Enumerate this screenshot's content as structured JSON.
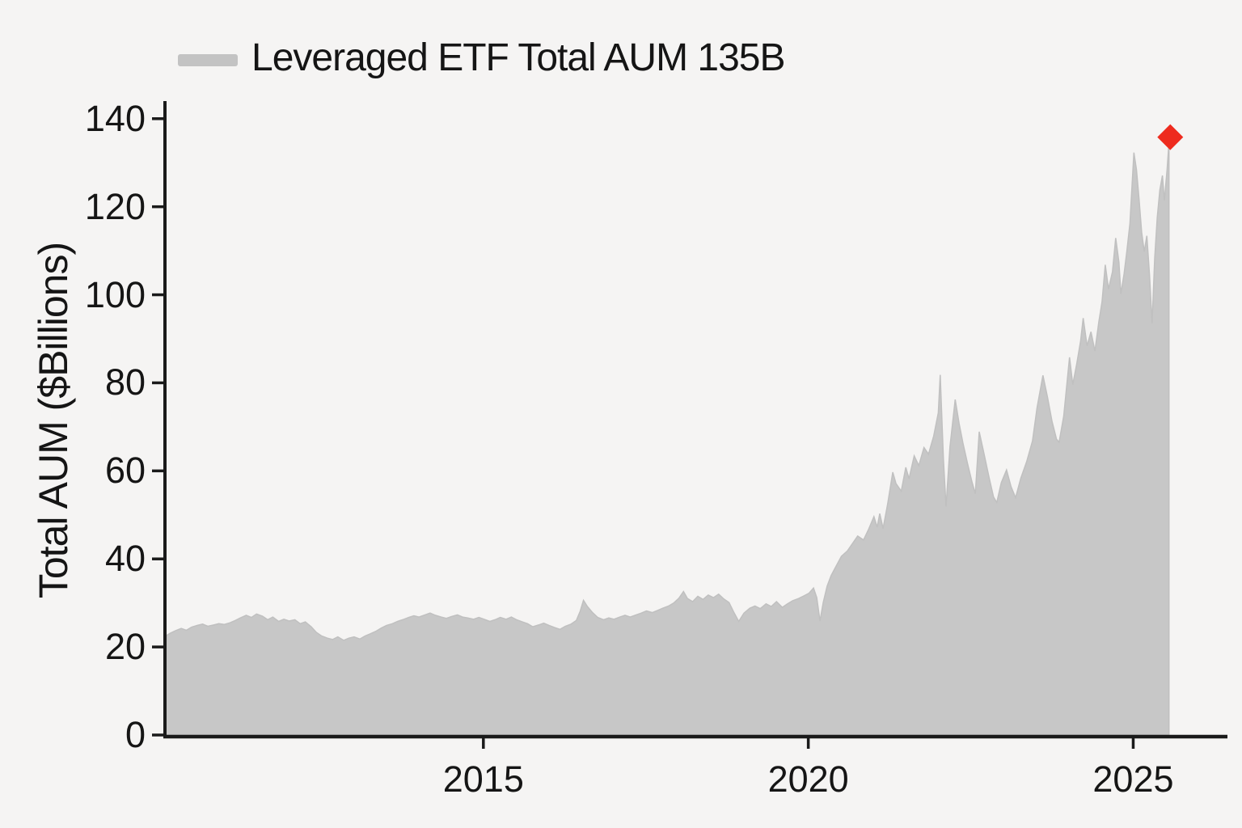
{
  "legend": {
    "label": "Leveraged ETF Total AUM 135B"
  },
  "colors": {
    "background": "#f5f4f3",
    "area_fill": "#c7c7c7",
    "area_edge": "#c0c0c0",
    "axis": "#1a1a1a",
    "text": "#151515",
    "legend_swatch": "#c3c3c3",
    "marker_red": "#ee2b1e"
  },
  "chart_data": {
    "type": "area",
    "series_name": "Leveraged ETF Total AUM",
    "latest_value_label": "135B",
    "ylabel": "Total AUM ($Billions)",
    "xticks": [
      2015,
      2020,
      2025
    ],
    "yticks": [
      0,
      20,
      40,
      60,
      80,
      100,
      120,
      140
    ],
    "xlim": [
      2010.1,
      2026.45
    ],
    "ylim": [
      0,
      144
    ],
    "grid": false,
    "legend_position": "upper-left",
    "marker": {
      "x": 2025.57,
      "y": 135.8,
      "shape": "diamond",
      "color": "#ee2b1e"
    },
    "points": [
      [
        2010.1,
        22.4
      ],
      [
        2010.18,
        23.1
      ],
      [
        2010.26,
        23.7
      ],
      [
        2010.35,
        24.2
      ],
      [
        2010.43,
        23.8
      ],
      [
        2010.51,
        24.5
      ],
      [
        2010.6,
        24.9
      ],
      [
        2010.68,
        25.2
      ],
      [
        2010.76,
        24.7
      ],
      [
        2010.85,
        25.0
      ],
      [
        2010.93,
        25.3
      ],
      [
        2011.01,
        25.1
      ],
      [
        2011.1,
        25.5
      ],
      [
        2011.18,
        26.0
      ],
      [
        2011.26,
        26.6
      ],
      [
        2011.35,
        27.2
      ],
      [
        2011.43,
        26.7
      ],
      [
        2011.51,
        27.5
      ],
      [
        2011.6,
        27.0
      ],
      [
        2011.68,
        26.2
      ],
      [
        2011.76,
        26.8
      ],
      [
        2011.85,
        25.8
      ],
      [
        2011.93,
        26.3
      ],
      [
        2012.01,
        25.9
      ],
      [
        2012.1,
        26.2
      ],
      [
        2012.18,
        25.3
      ],
      [
        2012.26,
        25.7
      ],
      [
        2012.35,
        24.6
      ],
      [
        2012.43,
        23.3
      ],
      [
        2012.51,
        22.5
      ],
      [
        2012.6,
        22.0
      ],
      [
        2012.68,
        21.7
      ],
      [
        2012.76,
        22.3
      ],
      [
        2012.85,
        21.5
      ],
      [
        2012.93,
        22.0
      ],
      [
        2013.01,
        22.3
      ],
      [
        2013.1,
        21.8
      ],
      [
        2013.18,
        22.5
      ],
      [
        2013.26,
        23.0
      ],
      [
        2013.35,
        23.6
      ],
      [
        2013.43,
        24.3
      ],
      [
        2013.51,
        24.9
      ],
      [
        2013.6,
        25.3
      ],
      [
        2013.68,
        25.8
      ],
      [
        2013.76,
        26.2
      ],
      [
        2013.85,
        26.7
      ],
      [
        2013.93,
        27.1
      ],
      [
        2014.01,
        26.8
      ],
      [
        2014.1,
        27.3
      ],
      [
        2014.18,
        27.7
      ],
      [
        2014.26,
        27.2
      ],
      [
        2014.35,
        26.8
      ],
      [
        2014.43,
        26.5
      ],
      [
        2014.51,
        26.9
      ],
      [
        2014.6,
        27.3
      ],
      [
        2014.68,
        26.8
      ],
      [
        2014.76,
        26.6
      ],
      [
        2014.85,
        26.3
      ],
      [
        2014.93,
        26.7
      ],
      [
        2015.01,
        26.3
      ],
      [
        2015.1,
        25.8
      ],
      [
        2015.18,
        26.2
      ],
      [
        2015.26,
        26.7
      ],
      [
        2015.35,
        26.3
      ],
      [
        2015.43,
        26.8
      ],
      [
        2015.51,
        26.2
      ],
      [
        2015.6,
        25.7
      ],
      [
        2015.68,
        25.3
      ],
      [
        2015.76,
        24.6
      ],
      [
        2015.85,
        25.0
      ],
      [
        2015.93,
        25.4
      ],
      [
        2016.01,
        24.9
      ],
      [
        2016.1,
        24.4
      ],
      [
        2016.18,
        24.0
      ],
      [
        2016.26,
        24.7
      ],
      [
        2016.35,
        25.2
      ],
      [
        2016.43,
        26.0
      ],
      [
        2016.49,
        28.1
      ],
      [
        2016.54,
        30.6
      ],
      [
        2016.6,
        29.2
      ],
      [
        2016.68,
        27.8
      ],
      [
        2016.76,
        26.7
      ],
      [
        2016.85,
        26.2
      ],
      [
        2016.93,
        26.6
      ],
      [
        2017.01,
        26.3
      ],
      [
        2017.1,
        26.8
      ],
      [
        2017.18,
        27.2
      ],
      [
        2017.26,
        26.8
      ],
      [
        2017.35,
        27.3
      ],
      [
        2017.43,
        27.7
      ],
      [
        2017.51,
        28.2
      ],
      [
        2017.6,
        27.8
      ],
      [
        2017.68,
        28.3
      ],
      [
        2017.76,
        28.8
      ],
      [
        2017.85,
        29.3
      ],
      [
        2017.93,
        30.0
      ],
      [
        2018.01,
        31.1
      ],
      [
        2018.08,
        32.6
      ],
      [
        2018.14,
        31.0
      ],
      [
        2018.22,
        30.3
      ],
      [
        2018.3,
        31.5
      ],
      [
        2018.38,
        30.8
      ],
      [
        2018.46,
        31.8
      ],
      [
        2018.54,
        31.2
      ],
      [
        2018.62,
        32.0
      ],
      [
        2018.7,
        30.9
      ],
      [
        2018.78,
        30.1
      ],
      [
        2018.85,
        28.0
      ],
      [
        2018.93,
        25.8
      ],
      [
        2019.01,
        27.7
      ],
      [
        2019.1,
        28.8
      ],
      [
        2019.18,
        29.3
      ],
      [
        2019.26,
        28.7
      ],
      [
        2019.35,
        29.8
      ],
      [
        2019.43,
        29.2
      ],
      [
        2019.51,
        30.3
      ],
      [
        2019.6,
        29.0
      ],
      [
        2019.68,
        29.8
      ],
      [
        2019.76,
        30.5
      ],
      [
        2019.85,
        31.0
      ],
      [
        2019.93,
        31.6
      ],
      [
        2020.01,
        32.2
      ],
      [
        2020.08,
        33.4
      ],
      [
        2020.13,
        31.2
      ],
      [
        2020.18,
        25.9
      ],
      [
        2020.23,
        30.1
      ],
      [
        2020.29,
        33.8
      ],
      [
        2020.35,
        36.2
      ],
      [
        2020.43,
        38.4
      ],
      [
        2020.51,
        40.6
      ],
      [
        2020.6,
        41.8
      ],
      [
        2020.68,
        43.5
      ],
      [
        2020.76,
        45.2
      ],
      [
        2020.85,
        44.3
      ],
      [
        2020.93,
        46.8
      ],
      [
        2021.01,
        49.6
      ],
      [
        2021.06,
        47.2
      ],
      [
        2021.1,
        50.3
      ],
      [
        2021.15,
        46.9
      ],
      [
        2021.22,
        52.4
      ],
      [
        2021.3,
        59.7
      ],
      [
        2021.35,
        57.1
      ],
      [
        2021.43,
        55.4
      ],
      [
        2021.5,
        60.8
      ],
      [
        2021.55,
        58.2
      ],
      [
        2021.63,
        63.4
      ],
      [
        2021.7,
        61.2
      ],
      [
        2021.78,
        65.3
      ],
      [
        2021.85,
        63.8
      ],
      [
        2021.93,
        67.9
      ],
      [
        2022.0,
        73.2
      ],
      [
        2022.03,
        81.8
      ],
      [
        2022.08,
        62.4
      ],
      [
        2022.12,
        51.9
      ],
      [
        2022.18,
        65.4
      ],
      [
        2022.26,
        76.2
      ],
      [
        2022.32,
        70.8
      ],
      [
        2022.38,
        66.3
      ],
      [
        2022.45,
        61.7
      ],
      [
        2022.52,
        57.4
      ],
      [
        2022.57,
        54.8
      ],
      [
        2022.63,
        68.9
      ],
      [
        2022.7,
        64.2
      ],
      [
        2022.78,
        58.6
      ],
      [
        2022.85,
        54.1
      ],
      [
        2022.9,
        52.8
      ],
      [
        2022.97,
        57.3
      ],
      [
        2023.05,
        60.2
      ],
      [
        2023.12,
        56.4
      ],
      [
        2023.19,
        53.9
      ],
      [
        2023.27,
        58.3
      ],
      [
        2023.36,
        62.1
      ],
      [
        2023.45,
        66.8
      ],
      [
        2023.52,
        74.3
      ],
      [
        2023.61,
        81.7
      ],
      [
        2023.68,
        76.8
      ],
      [
        2023.75,
        71.3
      ],
      [
        2023.82,
        67.2
      ],
      [
        2023.86,
        66.5
      ],
      [
        2023.93,
        72.4
      ],
      [
        2024.02,
        85.8
      ],
      [
        2024.07,
        79.6
      ],
      [
        2024.13,
        84.2
      ],
      [
        2024.19,
        89.5
      ],
      [
        2024.23,
        94.7
      ],
      [
        2024.29,
        88.4
      ],
      [
        2024.35,
        91.6
      ],
      [
        2024.41,
        87.2
      ],
      [
        2024.47,
        93.8
      ],
      [
        2024.52,
        98.4
      ],
      [
        2024.57,
        106.8
      ],
      [
        2024.62,
        101.3
      ],
      [
        2024.68,
        105.2
      ],
      [
        2024.73,
        112.9
      ],
      [
        2024.78,
        107.4
      ],
      [
        2024.81,
        100.2
      ],
      [
        2024.86,
        104.8
      ],
      [
        2024.9,
        109.6
      ],
      [
        2024.95,
        116.2
      ],
      [
        2025.01,
        132.3
      ],
      [
        2025.05,
        128.4
      ],
      [
        2025.09,
        121.7
      ],
      [
        2025.13,
        114.2
      ],
      [
        2025.17,
        109.8
      ],
      [
        2025.21,
        113.4
      ],
      [
        2025.25,
        104.6
      ],
      [
        2025.29,
        93.5
      ],
      [
        2025.33,
        108.2
      ],
      [
        2025.37,
        117.6
      ],
      [
        2025.41,
        123.8
      ],
      [
        2025.45,
        127.1
      ],
      [
        2025.48,
        121.4
      ],
      [
        2025.52,
        128.3
      ],
      [
        2025.55,
        134.6
      ]
    ]
  }
}
